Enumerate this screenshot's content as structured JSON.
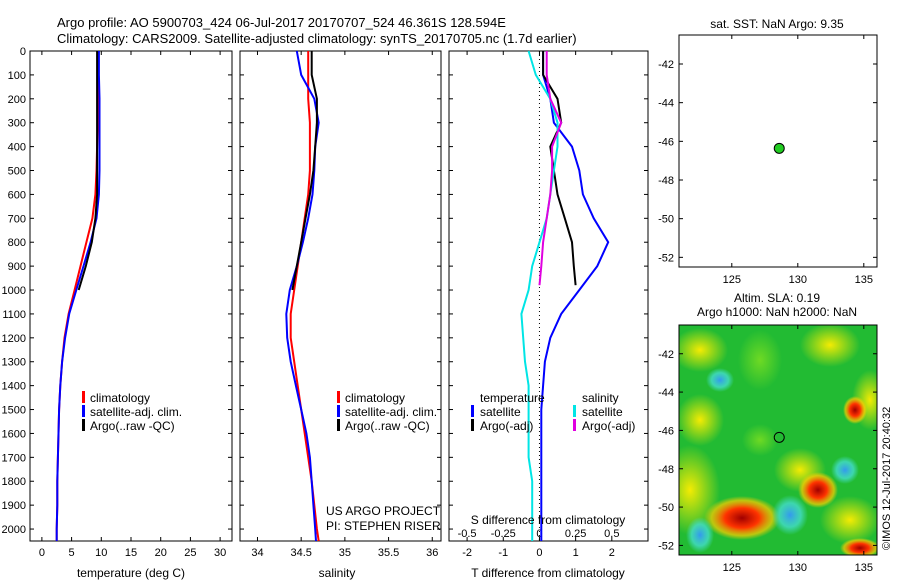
{
  "header": {
    "line1": "Argo profile: AO 5900703_424 06-Jul-2017 20170707_524 46.361S 128.594E",
    "line2": "Climatology: CARS2009. Satellite-adjusted climatology: synTS_20170705.nc (1.7d earlier)"
  },
  "credits": {
    "project": "US ARGO PROJECT",
    "pi": "PI: STEPHEN RISER",
    "stamp": "©IMOS 12-Jul-2017 20:40:32"
  },
  "colors": {
    "climatology": "#ff0000",
    "satellite": "#0000ff",
    "argo": "#000000",
    "sat_salinity": "#00e5e5",
    "argo_salinity": "#e000e0",
    "position_marker": "#22cc22"
  },
  "chart_data": [
    {
      "type": "line",
      "xlabel": "temperature (deg C)",
      "xlim": [
        -2,
        32
      ],
      "ylim": [
        0,
        2050
      ],
      "x_ticks": [
        0,
        5,
        10,
        15,
        20,
        25,
        30
      ],
      "y_ticks": [
        0,
        100,
        200,
        300,
        400,
        500,
        600,
        700,
        800,
        900,
        1000,
        1100,
        1200,
        1300,
        1400,
        1500,
        1600,
        1700,
        1800,
        1900,
        2000
      ],
      "legend": [
        "climatology",
        "satellite-adj. clim.",
        "Argo(..raw -QC)"
      ],
      "series": [
        {
          "name": "climatology",
          "color": "#ff0000",
          "x": [
            9.5,
            9.5,
            9.4,
            9.4,
            9.3,
            9.2,
            9.0,
            8.5,
            7.5,
            6.5,
            5.5,
            4.5,
            3.8,
            3.4,
            3.1,
            2.9,
            2.8,
            2.7,
            2.6,
            2.6,
            2.5,
            2.5
          ],
          "y": [
            0,
            100,
            200,
            300,
            400,
            500,
            600,
            700,
            800,
            900,
            1000,
            1100,
            1200,
            1300,
            1400,
            1500,
            1600,
            1700,
            1800,
            1900,
            2000,
            2050
          ]
        },
        {
          "name": "satellite-adj. clim.",
          "color": "#0000ff",
          "x": [
            9.6,
            9.6,
            9.7,
            9.7,
            9.7,
            9.7,
            9.6,
            9.2,
            8.2,
            7.0,
            5.8,
            4.6,
            3.9,
            3.4,
            3.1,
            2.9,
            2.8,
            2.7,
            2.6,
            2.6,
            2.5,
            2.5
          ],
          "y": [
            0,
            100,
            200,
            300,
            400,
            500,
            600,
            700,
            800,
            900,
            1000,
            1100,
            1200,
            1300,
            1400,
            1500,
            1600,
            1700,
            1800,
            1900,
            2000,
            2050
          ]
        },
        {
          "name": "Argo(..raw -QC)",
          "color": "#000000",
          "x": [
            9.3,
            9.3,
            9.3,
            9.3,
            9.3,
            9.3,
            9.3,
            9.0,
            8.4,
            7.4,
            6.2
          ],
          "y": [
            0,
            100,
            200,
            300,
            400,
            500,
            600,
            700,
            800,
            900,
            1000
          ]
        }
      ]
    },
    {
      "type": "line",
      "xlabel": "salinity",
      "xlim": [
        33.8,
        36.1
      ],
      "ylim": [
        0,
        2050
      ],
      "x_ticks": [
        34,
        34.5,
        35,
        35.5,
        36
      ],
      "legend": [
        "climatology",
        "satellite-adj. clim.",
        "Argo(..raw -QC)"
      ],
      "series": [
        {
          "name": "climatology",
          "color": "#ff0000",
          "x": [
            34.58,
            34.58,
            34.58,
            34.6,
            34.6,
            34.6,
            34.58,
            34.54,
            34.5,
            34.46,
            34.42,
            34.38,
            34.38,
            34.42,
            34.46,
            34.5,
            34.54,
            34.58,
            34.62,
            34.65,
            34.68,
            34.7
          ],
          "y": [
            0,
            100,
            200,
            300,
            400,
            500,
            600,
            700,
            800,
            900,
            1000,
            1100,
            1200,
            1300,
            1400,
            1500,
            1600,
            1700,
            1800,
            1900,
            2000,
            2050
          ]
        },
        {
          "name": "satellite-adj. clim.",
          "color": "#0000ff",
          "x": [
            34.45,
            34.5,
            34.65,
            34.7,
            34.66,
            34.65,
            34.63,
            34.58,
            34.52,
            34.45,
            34.37,
            34.33,
            34.34,
            34.38,
            34.44,
            34.5,
            34.56,
            34.6,
            34.62,
            34.64,
            34.66,
            34.67
          ],
          "y": [
            0,
            100,
            200,
            300,
            400,
            500,
            600,
            700,
            800,
            900,
            1000,
            1100,
            1200,
            1300,
            1400,
            1500,
            1600,
            1700,
            1800,
            1900,
            2000,
            2050
          ]
        },
        {
          "name": "Argo(..raw -QC)",
          "color": "#000000",
          "x": [
            34.62,
            34.62,
            34.68,
            34.68,
            34.66,
            34.64,
            34.6,
            34.55,
            34.5,
            34.45,
            34.4
          ],
          "y": [
            0,
            100,
            200,
            300,
            400,
            500,
            600,
            700,
            800,
            900,
            1000
          ]
        }
      ]
    },
    {
      "type": "line",
      "xlabel": "T difference from climatology",
      "top_label": "S difference from climatology",
      "xlim": [
        -2.5,
        3.0
      ],
      "x_ticks": [
        -2,
        -1,
        0,
        1,
        2
      ],
      "x_tick_labels": [
        "-2",
        "-1",
        "0",
        "1",
        "2"
      ],
      "s_tick_labels": [
        "-0.5",
        "-0.25",
        "0",
        "0.25",
        "0.5"
      ],
      "s_scale": 4,
      "ylim": [
        0,
        2050
      ],
      "legend_titles": [
        "temperature",
        "salinity"
      ],
      "legend": [
        "satellite",
        "Argo(-adj)",
        "satellite",
        "Argo(-adj)"
      ],
      "series": [
        {
          "name": "satellite",
          "kind": "temperature",
          "color": "#0000ff",
          "x": [
            0.1,
            0.1,
            0.3,
            0.4,
            0.9,
            1.1,
            1.2,
            1.5,
            1.9,
            1.6,
            1.1,
            0.6,
            0.3,
            0.15,
            0.1,
            0.05,
            0.05,
            0.05,
            0.05,
            0.05,
            0.05,
            0.05
          ],
          "y": [
            0,
            100,
            200,
            300,
            400,
            500,
            600,
            700,
            800,
            900,
            1000,
            1100,
            1200,
            1300,
            1400,
            1500,
            1600,
            1700,
            1800,
            1900,
            2000,
            2050
          ]
        },
        {
          "name": "Argo(-adj)",
          "kind": "temperature",
          "color": "#000000",
          "x": [
            0.1,
            0.1,
            0.5,
            0.6,
            0.3,
            0.4,
            0.5,
            0.7,
            0.9,
            0.95,
            1.0
          ],
          "y": [
            0,
            100,
            200,
            300,
            400,
            500,
            600,
            700,
            800,
            900,
            980
          ]
        },
        {
          "name": "satellite",
          "kind": "salinity",
          "color": "#00e5e5",
          "x": [
            -0.3,
            -0.1,
            0.3,
            0.5,
            0.5,
            0.4,
            0.3,
            0.2,
            0.0,
            -0.2,
            -0.3,
            -0.5,
            -0.45,
            -0.4,
            -0.3,
            -0.3,
            -0.3,
            -0.3,
            -0.2,
            -0.2,
            -0.2,
            -0.2
          ],
          "y": [
            0,
            100,
            200,
            300,
            400,
            500,
            600,
            700,
            800,
            900,
            1000,
            1100,
            1200,
            1300,
            1400,
            1500,
            1600,
            1700,
            1800,
            1900,
            2000,
            2050
          ]
        },
        {
          "name": "Argo(-adj)",
          "kind": "salinity",
          "color": "#e000e0",
          "x": [
            0.2,
            0.2,
            0.3,
            0.6,
            0.35,
            0.35,
            0.3,
            0.2,
            0.1,
            0.05,
            0.0
          ],
          "y": [
            0,
            100,
            200,
            300,
            400,
            500,
            600,
            700,
            800,
            900,
            980
          ]
        }
      ]
    },
    {
      "type": "scatter",
      "title": "sat. SST: NaN Argo: 9.35",
      "xlim": [
        121,
        136
      ],
      "ylim": [
        -52.5,
        -40.5
      ],
      "x_ticks": [
        125,
        130,
        135
      ],
      "y_ticks": [
        -42,
        -44,
        -46,
        -48,
        -50,
        -52
      ],
      "points": [
        {
          "x": 128.594,
          "y": -46.361
        }
      ]
    },
    {
      "type": "heatmap",
      "title": "Altim. SLA: 0.19",
      "subtitle": "Argo h1000: NaN h2000: NaN",
      "xlim": [
        121,
        136
      ],
      "ylim": [
        -52.5,
        -40.5
      ],
      "x_ticks": [
        125,
        130,
        135
      ],
      "y_ticks": [
        -42,
        -44,
        -46,
        -48,
        -50,
        -52
      ],
      "points": [
        {
          "x": 128.594,
          "y": -46.361
        }
      ]
    }
  ]
}
